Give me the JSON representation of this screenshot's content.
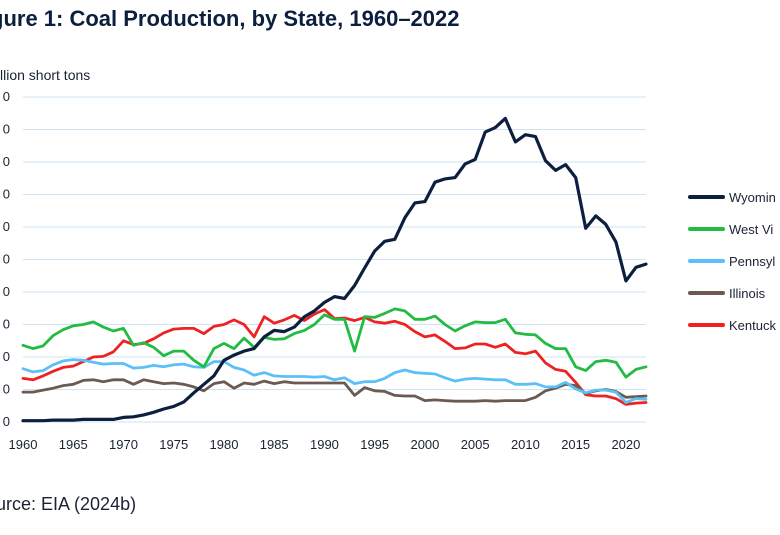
{
  "title": "gure 1: Coal Production, by State, 1960–2022",
  "source": "urce: EIA (2024b)",
  "chart_data": {
    "type": "line",
    "ylabel": "llion short tons",
    "xlim": [
      1960,
      2022
    ],
    "ylim": [
      0,
      500
    ],
    "yticks": [
      0,
      50,
      100,
      150,
      200,
      250,
      300,
      350,
      400,
      450,
      500
    ],
    "ytick_labels": [
      "0",
      "0",
      "0",
      "0",
      "0",
      "0",
      "0",
      "0",
      "0",
      "0",
      "0"
    ],
    "xticks": [
      1960,
      1965,
      1970,
      1975,
      1980,
      1985,
      1990,
      1995,
      2000,
      2005,
      2010,
      2015,
      2020
    ],
    "xtick_labels": [
      "1960",
      "1965",
      "1970",
      "1975",
      "1980",
      "1985",
      "1990",
      "1995",
      "2000",
      "2005",
      "2010",
      "2015",
      "2020"
    ],
    "grid": true,
    "legend_position": "right",
    "x": [
      1960,
      1961,
      1962,
      1963,
      1964,
      1965,
      1966,
      1967,
      1968,
      1969,
      1970,
      1971,
      1972,
      1973,
      1974,
      1975,
      1976,
      1977,
      1978,
      1979,
      1980,
      1981,
      1982,
      1983,
      1984,
      1985,
      1986,
      1987,
      1988,
      1989,
      1990,
      1991,
      1992,
      1993,
      1994,
      1995,
      1996,
      1997,
      1998,
      1999,
      2000,
      2001,
      2002,
      2003,
      2004,
      2005,
      2006,
      2007,
      2008,
      2009,
      2010,
      2011,
      2012,
      2013,
      2014,
      2015,
      2016,
      2017,
      2018,
      2019,
      2020,
      2021,
      2022
    ],
    "series": [
      {
        "name": "Wyomin",
        "color": "#0c1f3f",
        "values": [
          2,
          2,
          2,
          3,
          3,
          3,
          4,
          4,
          4,
          4,
          7,
          8,
          11,
          15,
          20,
          24,
          31,
          45,
          58,
          71,
          95,
          103,
          109,
          113,
          131,
          141,
          139,
          146,
          162,
          171,
          184,
          193,
          190,
          210,
          237,
          263,
          278,
          281,
          314,
          337,
          339,
          369,
          374,
          376,
          397,
          404,
          446,
          453,
          467,
          431,
          442,
          439,
          402,
          387,
          396,
          376,
          298,
          317,
          304,
          277,
          217,
          238,
          243
        ]
      },
      {
        "name": "West Vi",
        "color": "#22bb44",
        "values": [
          118,
          113,
          117,
          133,
          142,
          148,
          150,
          154,
          146,
          140,
          144,
          118,
          122,
          115,
          102,
          109,
          109,
          95,
          85,
          113,
          121,
          113,
          129,
          115,
          130,
          127,
          128,
          136,
          141,
          150,
          165,
          158,
          158,
          109,
          162,
          161,
          167,
          174,
          171,
          158,
          158,
          163,
          150,
          140,
          148,
          154,
          153,
          153,
          158,
          137,
          135,
          134,
          121,
          113,
          113,
          85,
          79,
          93,
          95,
          92,
          69,
          81,
          85
        ]
      },
      {
        "name": "Pennsyl",
        "color": "#5bc0f8",
        "values": [
          82,
          77,
          79,
          88,
          94,
          96,
          95,
          92,
          89,
          90,
          90,
          83,
          84,
          87,
          85,
          88,
          89,
          85,
          84,
          93,
          93,
          84,
          80,
          72,
          76,
          71,
          70,
          70,
          70,
          69,
          70,
          65,
          68,
          59,
          62,
          62,
          67,
          76,
          80,
          76,
          75,
          74,
          68,
          63,
          66,
          67,
          66,
          65,
          65,
          58,
          58,
          59,
          54,
          54,
          61,
          51,
          45,
          49,
          49,
          46,
          30,
          36,
          35
        ]
      },
      {
        "name": "Illinois",
        "color": "#6b5a52",
        "values": [
          46,
          46,
          49,
          52,
          56,
          58,
          64,
          65,
          62,
          65,
          65,
          58,
          65,
          62,
          59,
          60,
          58,
          54,
          48,
          59,
          62,
          52,
          60,
          58,
          63,
          59,
          62,
          60,
          60,
          60,
          60,
          60,
          60,
          41,
          53,
          48,
          47,
          41,
          40,
          40,
          33,
          34,
          33,
          32,
          32,
          32,
          33,
          32,
          33,
          33,
          33,
          38,
          48,
          52,
          58,
          56,
          44,
          48,
          50,
          47,
          38,
          39,
          40
        ]
      },
      {
        "name": "Kentuck",
        "color": "#ee2222",
        "values": [
          67,
          65,
          71,
          78,
          84,
          86,
          93,
          100,
          101,
          108,
          125,
          119,
          121,
          128,
          137,
          143,
          144,
          144,
          136,
          147,
          150,
          157,
          150,
          131,
          162,
          152,
          157,
          164,
          156,
          166,
          173,
          159,
          160,
          156,
          161,
          154,
          152,
          155,
          150,
          139,
          131,
          134,
          124,
          113,
          114,
          120,
          120,
          115,
          120,
          107,
          105,
          109,
          91,
          81,
          78,
          61,
          42,
          40,
          40,
          36,
          27,
          29,
          30
        ]
      }
    ]
  }
}
